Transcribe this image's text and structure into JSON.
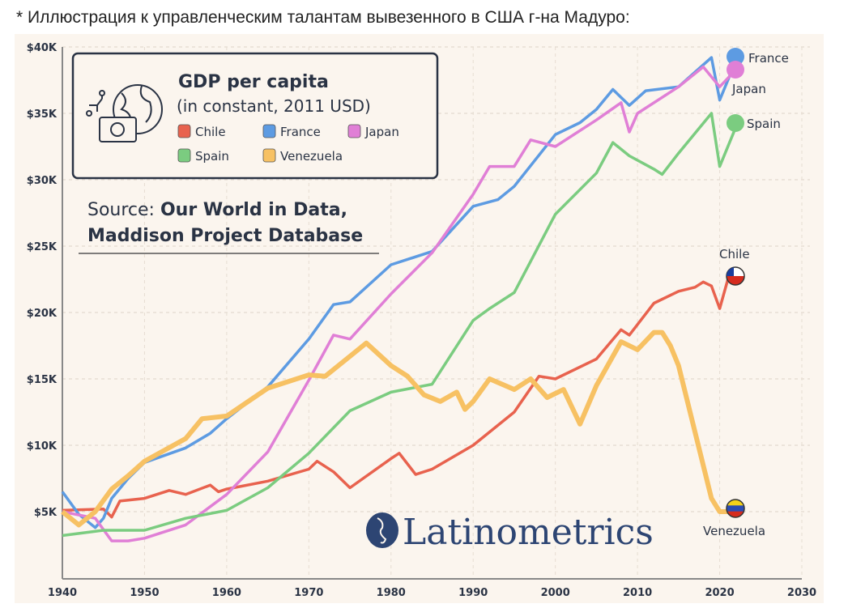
{
  "caption": "* Иллюстрация к управленческим талантам вывезенного в США г-на Мадуро:",
  "chart_data": {
    "type": "line",
    "title": "GDP per capita",
    "subtitle": "(in constant, 2011 USD)",
    "source_label": "Source:",
    "source_text_1": "Our World in Data,",
    "source_text_2": "Maddison Project Database",
    "brand": "Latinometrics",
    "xlim": [
      1940,
      2030
    ],
    "ylim": [
      0,
      40000
    ],
    "x_ticks": [
      1940,
      1950,
      1960,
      1970,
      1980,
      1990,
      2000,
      2010,
      2020,
      2030
    ],
    "x_tick_labels": [
      "1940",
      "1950",
      "1960",
      "1970",
      "1980",
      "1990",
      "2000",
      "2010",
      "2020",
      "2030"
    ],
    "y_ticks": [
      5000,
      10000,
      15000,
      20000,
      25000,
      30000,
      35000,
      40000
    ],
    "y_tick_labels": [
      "$5K",
      "$10K",
      "$15K",
      "$20K",
      "$25K",
      "$30K",
      "$35K",
      "$40K"
    ],
    "grid": true,
    "legend_position": "top-left",
    "series": [
      {
        "name": "Chile",
        "color": "#e8624e",
        "end_label": "Chile",
        "x": [
          1940,
          1945,
          1946,
          1947,
          1950,
          1953,
          1955,
          1958,
          1959,
          1960,
          1965,
          1970,
          1971,
          1973,
          1975,
          1980,
          1981,
          1983,
          1985,
          1990,
          1995,
          1998,
          2000,
          2005,
          2008,
          2009,
          2012,
          2015,
          2017,
          2018,
          2019,
          2020,
          2021,
          2022
        ],
        "y": [
          5100,
          5200,
          4600,
          5800,
          6000,
          6600,
          6300,
          7000,
          6500,
          6700,
          7300,
          8200,
          8800,
          8000,
          6800,
          9000,
          9400,
          7800,
          8200,
          10000,
          12500,
          15200,
          15000,
          16500,
          18700,
          18300,
          20700,
          21600,
          21900,
          22300,
          22000,
          20300,
          22500,
          22700
        ]
      },
      {
        "name": "France",
        "color": "#5d9be2",
        "end_label": "France",
        "x": [
          1940,
          1942,
          1944,
          1945,
          1946,
          1948,
          1950,
          1955,
          1958,
          1960,
          1965,
          1970,
          1973,
          1975,
          1980,
          1985,
          1990,
          1993,
          1995,
          2000,
          2003,
          2005,
          2007,
          2009,
          2011,
          2015,
          2019,
          2020,
          2022
        ],
        "y": [
          6500,
          4800,
          3800,
          4500,
          6000,
          7500,
          8700,
          9800,
          10900,
          12000,
          14400,
          18000,
          20600,
          20800,
          23600,
          24600,
          28000,
          28500,
          29500,
          33400,
          34300,
          35300,
          36800,
          35600,
          36700,
          37000,
          39200,
          36000,
          39000
        ]
      },
      {
        "name": "Japan",
        "color": "#e07fd6",
        "end_label": "Japan",
        "x": [
          1940,
          1944,
          1946,
          1948,
          1950,
          1955,
          1960,
          1965,
          1970,
          1973,
          1975,
          1980,
          1985,
          1990,
          1992,
          1995,
          1997,
          2000,
          2005,
          2008,
          2009,
          2010,
          2015,
          2018,
          2020,
          2022
        ],
        "y": [
          5000,
          4500,
          2800,
          2800,
          3000,
          4000,
          6300,
          9500,
          14900,
          18300,
          18000,
          21400,
          24500,
          28900,
          31000,
          31000,
          33000,
          32500,
          34500,
          35800,
          33600,
          35000,
          37000,
          38500,
          37000,
          38300
        ]
      },
      {
        "name": "Spain",
        "color": "#7bcc80",
        "end_label": "Spain",
        "x": [
          1940,
          1945,
          1950,
          1955,
          1960,
          1965,
          1970,
          1975,
          1980,
          1985,
          1990,
          1992,
          1995,
          2000,
          2005,
          2007,
          2009,
          2012,
          2013,
          2015,
          2019,
          2020,
          2022
        ],
        "y": [
          3200,
          3600,
          3600,
          4500,
          5100,
          6800,
          9400,
          12600,
          14000,
          14600,
          19400,
          20300,
          21500,
          27400,
          30500,
          32800,
          31800,
          30800,
          30400,
          32000,
          35000,
          31000,
          34000
        ]
      },
      {
        "name": "Venezuela",
        "color": "#f7c163",
        "end_label": "Venezuela",
        "x": [
          1940,
          1942,
          1944,
          1946,
          1948,
          1950,
          1955,
          1957,
          1960,
          1965,
          1970,
          1972,
          1975,
          1977,
          1980,
          1982,
          1984,
          1986,
          1988,
          1989,
          1990,
          1992,
          1995,
          1997,
          1999,
          2001,
          2003,
          2005,
          2008,
          2010,
          2012,
          2013,
          2014,
          2015,
          2017,
          2019,
          2020,
          2021,
          2022
        ],
        "y": [
          5000,
          4000,
          5000,
          6700,
          7700,
          8800,
          10500,
          12000,
          12200,
          14300,
          15300,
          15200,
          16700,
          17700,
          16000,
          15200,
          13800,
          13300,
          14000,
          12700,
          13300,
          15000,
          14200,
          15000,
          13600,
          14200,
          11600,
          14500,
          17800,
          17200,
          18500,
          18500,
          17500,
          16000,
          11000,
          6000,
          5000,
          5000,
          5300
        ]
      }
    ]
  }
}
